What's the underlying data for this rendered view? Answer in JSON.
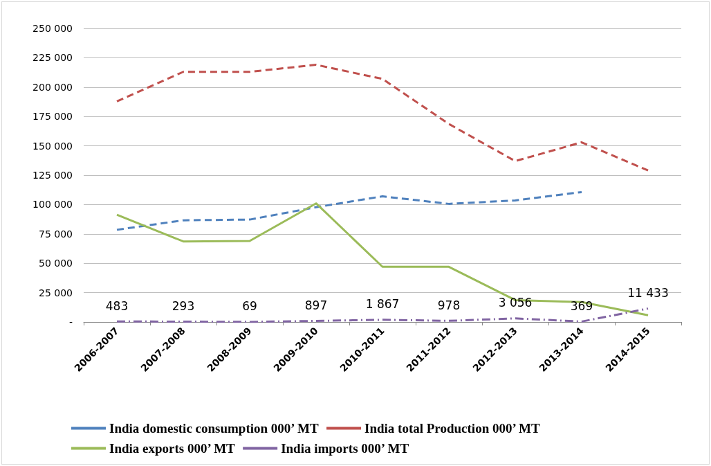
{
  "chart_data": {
    "type": "line",
    "categories": [
      "2006-2007",
      "2007-2008",
      "2008-2009",
      "2009-2010",
      "2010-2011",
      "2011-2012",
      "2012-2013",
      "2013-2014",
      "2014-2015"
    ],
    "series": [
      {
        "name": "India domestic consumption 000’ MT",
        "color": "#4f81bd",
        "line_style": "dashed",
        "values": [
          78500,
          86600,
          87200,
          97700,
          107000,
          100600,
          103500,
          110600,
          null
        ]
      },
      {
        "name": "India total Production 000’ MT",
        "color": "#c0504d",
        "line_style": "dashed",
        "values": [
          187800,
          213000,
          213000,
          219000,
          207000,
          168600,
          137000,
          153000,
          129000
        ]
      },
      {
        "name": "India exports 000’ MT",
        "color": "#9bbb59",
        "line_style": "solid",
        "values": [
          91300,
          68600,
          69000,
          101000,
          47000,
          47000,
          18600,
          16900,
          5800
        ]
      },
      {
        "name": "India imports 000’ MT",
        "color": "#8064a2",
        "line_style": "dashdot",
        "values": [
          483,
          293,
          69,
          897,
          1867,
          978,
          3056,
          369,
          11433
        ],
        "value_labels": [
          "483",
          "293",
          "69",
          "897",
          "1 867",
          "978",
          "3 056",
          "369",
          "11 433"
        ]
      }
    ],
    "ylim": [
      0,
      250000
    ],
    "yticks": [
      {
        "value": 0,
        "label": "-"
      },
      {
        "value": 25000,
        "label": "25 000"
      },
      {
        "value": 50000,
        "label": "50 000"
      },
      {
        "value": 75000,
        "label": "75 000"
      },
      {
        "value": 100000,
        "label": "100 000"
      },
      {
        "value": 125000,
        "label": "125 000"
      },
      {
        "value": 150000,
        "label": "150 000"
      },
      {
        "value": 175000,
        "label": "175 000"
      },
      {
        "value": 200000,
        "label": "200 000"
      },
      {
        "value": 225000,
        "label": "225 000"
      },
      {
        "value": 250000,
        "label": "250 000"
      }
    ],
    "grid": "y",
    "legend": "bottom",
    "marker": "none"
  }
}
